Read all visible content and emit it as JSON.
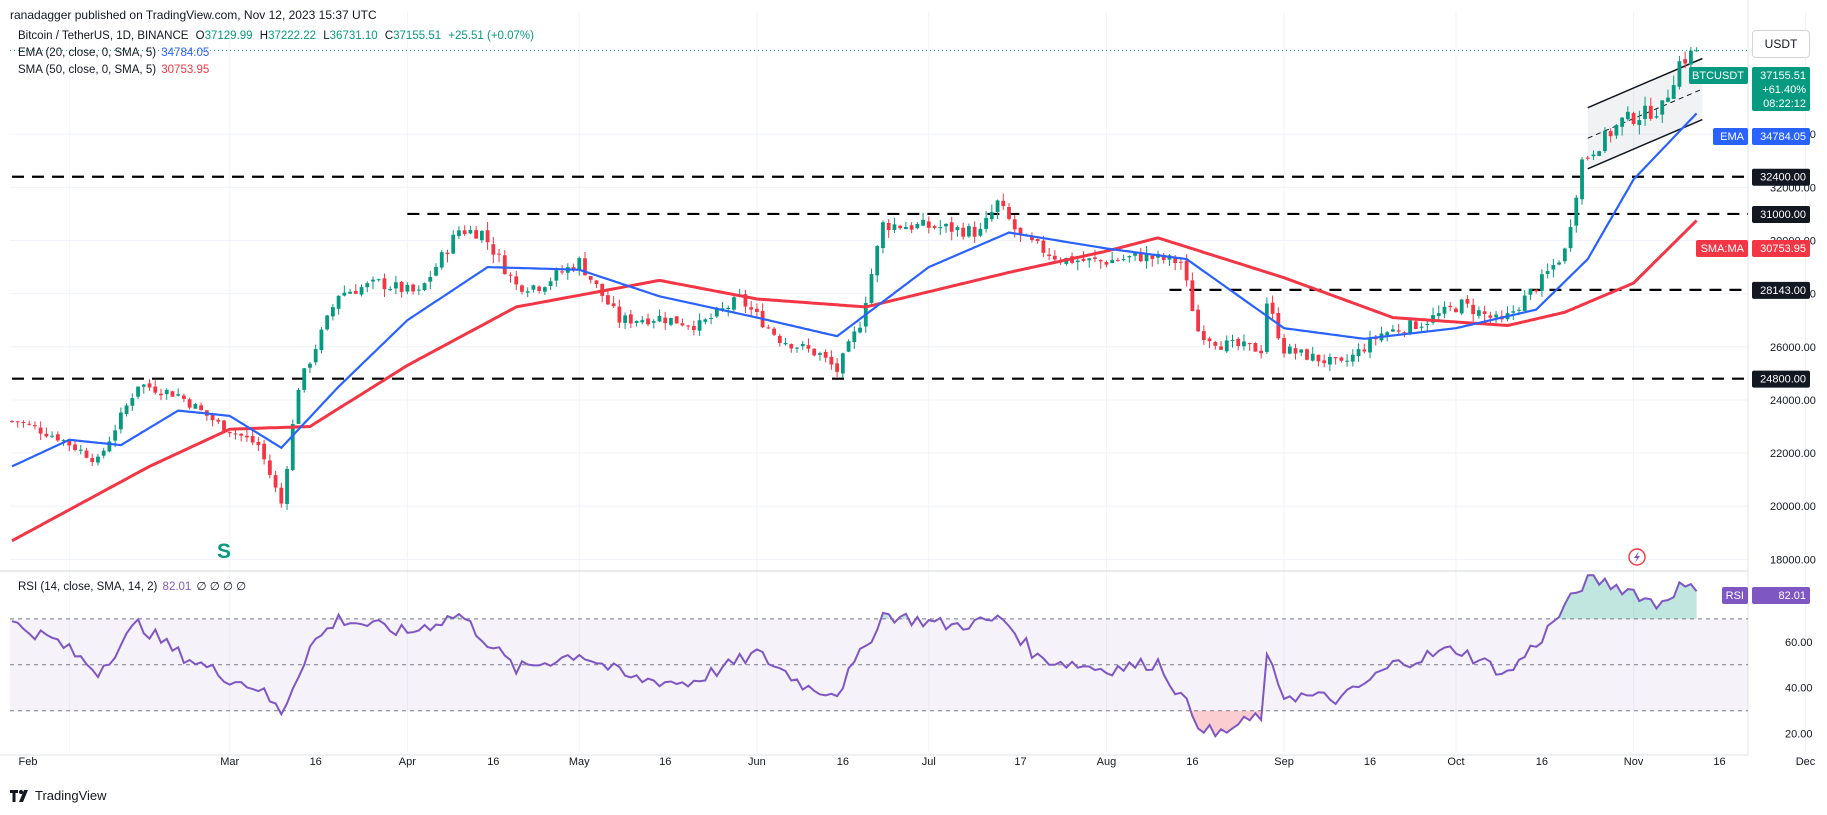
{
  "header": {
    "publisher": "ranadagger published on TradingView.com, Nov 12, 2023 15:37 UTC"
  },
  "legend": {
    "symbol": "Bitcoin / TetherUS, 1D, BINANCE",
    "ohlc": {
      "o_label": "O",
      "o": "37129.99",
      "h_label": "H",
      "h": "37222.22",
      "l_label": "L",
      "l": "36731.10",
      "c_label": "C",
      "c": "37155.51",
      "change": "+25.51 (+0.07%)"
    },
    "ema": {
      "label": "EMA (20, close, 0, SMA, 5)",
      "value": "34784.05"
    },
    "sma": {
      "label": "SMA (50, close, 0, SMA, 5)",
      "value": "30753.95"
    },
    "rsi": {
      "label": "RSI (14, close, SMA, 14, 2)",
      "value": "82.01",
      "extra": "∅ ∅ ∅ ∅"
    }
  },
  "currency_button": "USDT",
  "price_tags": {
    "symbol": "BTCUSDT",
    "price": "37155.51",
    "pct": "+61.40%",
    "countdown": "08:22:12",
    "ema_label": "EMA",
    "ema_value": "34784.05",
    "sma_label": "SMA:MA",
    "sma_value": "30753.95",
    "rsi_label": "RSI",
    "rsi_value": "82.01"
  },
  "annotation_s": "S",
  "footer": {
    "brand": "TradingView"
  },
  "colors": {
    "up": "#089981",
    "down": "#f23645",
    "ema": "#2962ff",
    "sma": "#f23645",
    "rsi": "#7e57c2",
    "levels": "#000000",
    "channel": "#131722"
  },
  "chart_data": {
    "type": "candlestick",
    "symbol": "BTCUSDT",
    "timeframe": "1D",
    "x_tick_labels": [
      "Feb",
      "Mar",
      "16",
      "Apr",
      "16",
      "May",
      "16",
      "Jun",
      "16",
      "Jul",
      "17",
      "Aug",
      "16",
      "Sep",
      "16",
      "Oct",
      "16",
      "Nov",
      "16",
      "Dec"
    ],
    "y_tick_labels": [
      "18000.00",
      "20000.00",
      "22000.00",
      "24000.00",
      "26000.00",
      "28000.00",
      "30000.00",
      "32000.00",
      "34000.00"
    ],
    "ylim": [
      17600,
      38600
    ],
    "horizontal_levels": [
      {
        "value": 32400,
        "label": "32400.00",
        "from": "2023-01-22"
      },
      {
        "value": 31000,
        "label": "31000.00",
        "from": "2023-04-01"
      },
      {
        "value": 28143,
        "label": "28143.00",
        "from": "2023-08-12"
      },
      {
        "value": 24800,
        "label": "24800.00",
        "from": "2023-01-22"
      }
    ],
    "ascending_channel": {
      "upper": [
        [
          "2023-10-24",
          35000
        ],
        [
          "2023-11-13",
          36850
        ]
      ],
      "lower": [
        [
          "2023-10-24",
          32700
        ],
        [
          "2023-11-13",
          34550
        ]
      ],
      "mid": [
        [
          "2023-10-24",
          33850
        ],
        [
          "2023-11-13",
          35700
        ]
      ]
    },
    "weekly_close_anchors": [
      [
        "2023-01-23",
        23200
      ],
      [
        "2023-01-30",
        22600
      ],
      [
        "2023-02-06",
        21700
      ],
      [
        "2023-02-13",
        24600
      ],
      [
        "2023-02-20",
        24200
      ],
      [
        "2023-02-27",
        23100
      ],
      [
        "2023-03-06",
        22300
      ],
      [
        "2023-03-10",
        20100
      ],
      [
        "2023-03-13",
        24500
      ],
      [
        "2023-03-20",
        28000
      ],
      [
        "2023-03-27",
        28400
      ],
      [
        "2023-04-03",
        28000
      ],
      [
        "2023-04-10",
        30400
      ],
      [
        "2023-04-14",
        30300
      ],
      [
        "2023-04-20",
        28300
      ],
      [
        "2023-04-24",
        28300
      ],
      [
        "2023-05-01",
        29200
      ],
      [
        "2023-05-08",
        27000
      ],
      [
        "2023-05-15",
        27100
      ],
      [
        "2023-05-22",
        26800
      ],
      [
        "2023-05-29",
        27800
      ],
      [
        "2023-06-05",
        26300
      ],
      [
        "2023-06-12",
        25700
      ],
      [
        "2023-06-15",
        25100
      ],
      [
        "2023-06-19",
        26900
      ],
      [
        "2023-06-23",
        30600
      ],
      [
        "2023-07-03",
        30500
      ],
      [
        "2023-07-10",
        30300
      ],
      [
        "2023-07-13",
        31400
      ],
      [
        "2023-07-17",
        30100
      ],
      [
        "2023-07-24",
        29300
      ],
      [
        "2023-07-31",
        29200
      ],
      [
        "2023-08-07",
        29400
      ],
      [
        "2023-08-14",
        29200
      ],
      [
        "2023-08-17",
        26600
      ],
      [
        "2023-08-21",
        26100
      ],
      [
        "2023-08-28",
        25900
      ],
      [
        "2023-08-29",
        27700
      ],
      [
        "2023-09-01",
        25900
      ],
      [
        "2023-09-11",
        25300
      ],
      [
        "2023-09-18",
        26500
      ],
      [
        "2023-09-25",
        26900
      ],
      [
        "2023-10-02",
        27600
      ],
      [
        "2023-10-09",
        26900
      ],
      [
        "2023-10-16",
        28500
      ],
      [
        "2023-10-20",
        29600
      ],
      [
        "2023-10-23",
        33000
      ],
      [
        "2023-10-30",
        34500
      ],
      [
        "2023-11-06",
        35000
      ],
      [
        "2023-11-09",
        36700
      ],
      [
        "2023-11-12",
        37155.51
      ]
    ],
    "ema20_anchors": [
      [
        "2023-01-22",
        21500
      ],
      [
        "2023-02-01",
        22500
      ],
      [
        "2023-02-10",
        22300
      ],
      [
        "2023-02-20",
        23600
      ],
      [
        "2023-03-01",
        23400
      ],
      [
        "2023-03-10",
        22200
      ],
      [
        "2023-03-20",
        24500
      ],
      [
        "2023-04-01",
        27000
      ],
      [
        "2023-04-15",
        29000
      ],
      [
        "2023-05-01",
        28900
      ],
      [
        "2023-05-15",
        27900
      ],
      [
        "2023-06-01",
        27100
      ],
      [
        "2023-06-15",
        26400
      ],
      [
        "2023-07-01",
        29000
      ],
      [
        "2023-07-15",
        30300
      ],
      [
        "2023-08-01",
        29700
      ],
      [
        "2023-08-15",
        29300
      ],
      [
        "2023-09-01",
        26700
      ],
      [
        "2023-09-15",
        26300
      ],
      [
        "2023-10-01",
        26700
      ],
      [
        "2023-10-15",
        27400
      ],
      [
        "2023-10-24",
        29300
      ],
      [
        "2023-11-01",
        32300
      ],
      [
        "2023-11-12",
        34784.05
      ]
    ],
    "sma50_anchors": [
      [
        "2023-01-22",
        18700
      ],
      [
        "2023-02-15",
        21500
      ],
      [
        "2023-03-01",
        22900
      ],
      [
        "2023-03-15",
        23000
      ],
      [
        "2023-04-01",
        25300
      ],
      [
        "2023-04-20",
        27500
      ],
      [
        "2023-05-15",
        28500
      ],
      [
        "2023-06-01",
        27800
      ],
      [
        "2023-06-20",
        27500
      ],
      [
        "2023-07-15",
        28800
      ],
      [
        "2023-08-01",
        29600
      ],
      [
        "2023-08-10",
        30100
      ],
      [
        "2023-09-01",
        28600
      ],
      [
        "2023-09-20",
        27100
      ],
      [
        "2023-10-10",
        26800
      ],
      [
        "2023-10-20",
        27300
      ],
      [
        "2023-11-01",
        28400
      ],
      [
        "2023-11-12",
        30753.95
      ]
    ],
    "rsi": {
      "label": "RSI (14, close, SMA, 14, 2)",
      "ylim": [
        12,
        90
      ],
      "y_tick_labels": [
        "20.00",
        "40.00",
        "60.00"
      ],
      "bands": [
        30,
        50,
        70
      ],
      "anchors": [
        [
          "2023-01-22",
          68
        ],
        [
          "2023-01-30",
          60
        ],
        [
          "2023-02-06",
          47
        ],
        [
          "2023-02-13",
          68
        ],
        [
          "2023-02-20",
          55
        ],
        [
          "2023-03-01",
          44
        ],
        [
          "2023-03-06",
          40
        ],
        [
          "2023-03-10",
          29
        ],
        [
          "2023-03-15",
          58
        ],
        [
          "2023-03-20",
          70
        ],
        [
          "2023-04-01",
          64
        ],
        [
          "2023-04-10",
          72
        ],
        [
          "2023-04-20",
          48
        ],
        [
          "2023-05-01",
          55
        ],
        [
          "2023-05-10",
          44
        ],
        [
          "2023-05-20",
          42
        ],
        [
          "2023-06-01",
          55
        ],
        [
          "2023-06-10",
          40
        ],
        [
          "2023-06-15",
          38
        ],
        [
          "2023-06-20",
          58
        ],
        [
          "2023-06-23",
          72
        ],
        [
          "2023-07-05",
          67
        ],
        [
          "2023-07-14",
          70
        ],
        [
          "2023-07-20",
          53
        ],
        [
          "2023-08-01",
          48
        ],
        [
          "2023-08-10",
          51
        ],
        [
          "2023-08-17",
          25
        ],
        [
          "2023-08-20",
          19
        ],
        [
          "2023-08-28",
          28
        ],
        [
          "2023-08-29",
          52
        ],
        [
          "2023-09-01",
          37
        ],
        [
          "2023-09-11",
          35
        ],
        [
          "2023-09-20",
          50
        ],
        [
          "2023-10-01",
          57
        ],
        [
          "2023-10-10",
          46
        ],
        [
          "2023-10-16",
          62
        ],
        [
          "2023-10-24",
          88
        ],
        [
          "2023-11-01",
          82
        ],
        [
          "2023-11-05",
          76
        ],
        [
          "2023-11-09",
          84
        ],
        [
          "2023-11-12",
          82.01
        ]
      ]
    }
  }
}
